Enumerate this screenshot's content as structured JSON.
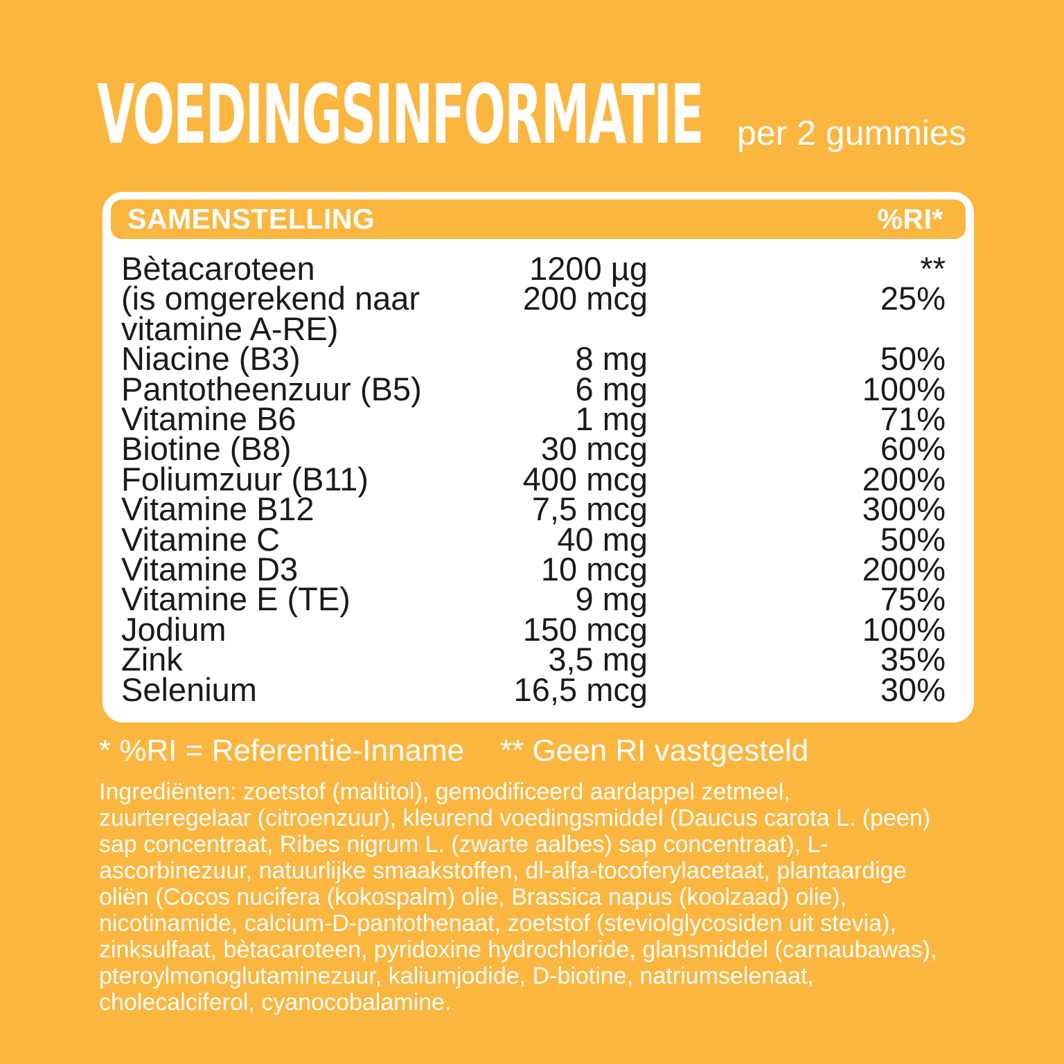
{
  "colors": {
    "background_orange": "#FBB640",
    "table_background": "#FFFFFF",
    "text_white": "#FFFFFF",
    "text_black": "#1A1A1A"
  },
  "header": {
    "title": "VOEDINGSINFORMATIE",
    "serving": "per 2 gummies"
  },
  "table": {
    "header": {
      "composition_label": "SAMENSTELLING",
      "ri_label": "%RI*"
    },
    "rows": [
      {
        "name": "Bètacaroteen",
        "amount": "1200 µg",
        "ri": "**"
      },
      {
        "name": "(is omgerekend naar",
        "amount": "200 mcg",
        "ri": "25%"
      },
      {
        "name": "vitamine A-RE)",
        "amount": "",
        "ri": ""
      },
      {
        "name": "Niacine (B3)",
        "amount": "8 mg",
        "ri": "50%"
      },
      {
        "name": "Pantotheenzuur (B5)",
        "amount": "6 mg",
        "ri": "100%"
      },
      {
        "name": "Vitamine B6",
        "amount": "1 mg",
        "ri": "71%"
      },
      {
        "name": "Biotine (B8)",
        "amount": "30 mcg",
        "ri": "60%"
      },
      {
        "name": "Foliumzuur (B11)",
        "amount": "400 mcg",
        "ri": "200%"
      },
      {
        "name": "Vitamine B12",
        "amount": "7,5 mcg",
        "ri": "300%"
      },
      {
        "name": "Vitamine C",
        "amount": "40 mg",
        "ri": "50%"
      },
      {
        "name": "Vitamine D3",
        "amount": "10 mcg",
        "ri": "200%"
      },
      {
        "name": "Vitamine E (TE)",
        "amount": "9 mg",
        "ri": "75%"
      },
      {
        "name": "Jodium",
        "amount": "150 mcg",
        "ri": "100%"
      },
      {
        "name": "Zink",
        "amount": "3,5 mg",
        "ri": "35%"
      },
      {
        "name": "Selenium",
        "amount": "16,5 mcg",
        "ri": "30%"
      }
    ]
  },
  "footnotes": {
    "ri_definition": "* %RI = Referentie-Inname",
    "no_ri": "** Geen RI vastgesteld"
  },
  "ingredients": {
    "lines": [
      "Ingrediënten: zoetstof (maltitol), gemodificeerd aardappel zetmeel,",
      "zuurteregelaar (citroenzuur), kleurend voedingsmiddel (Daucus carota L. (peen)",
      "sap concentraat, Ribes nigrum L. (zwarte aalbes) sap concentraat), L-",
      "ascorbinezuur, natuurlijke smaakstoffen, dl-alfa-tocoferylacetaat, plantaardige",
      "oliën (Cocos nucifera (kokospalm) olie, Brassica napus (koolzaad) olie),",
      "nicotinamide, calcium-D-pantothenaat, zoetstof (steviolglycosiden uit stevia),",
      "zinksulfaat, bètacaroteen, pyridoxine hydrochloride, glansmiddel (carnaubawas),",
      "pteroylmonoglutaminezuur, kaliumjodide, D-biotine, natriumselenaat,",
      "cholecalciferol, cyanocobalamine."
    ]
  }
}
